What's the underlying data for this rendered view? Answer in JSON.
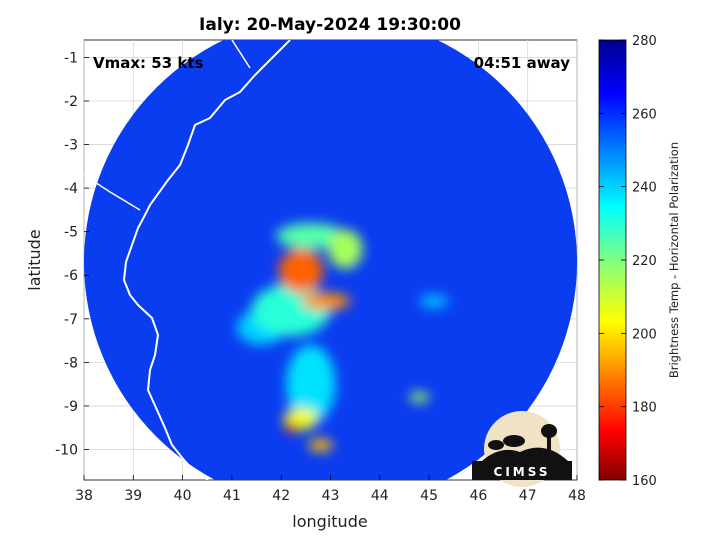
{
  "chart_data": {
    "type": "heatmap",
    "title": "Ialy: 20-May-2024 19:30:00",
    "xlabel": "longitude",
    "ylabel": "latitude",
    "xlim": [
      38,
      48
    ],
    "ylim": [
      -10.7,
      -0.6
    ],
    "xticks": [
      "38",
      "39",
      "40",
      "41",
      "42",
      "43",
      "44",
      "45",
      "46",
      "47",
      "48"
    ],
    "yticks": [
      "-1",
      "-2",
      "-3",
      "-4",
      "-5",
      "-6",
      "-7",
      "-8",
      "-9",
      "-10"
    ],
    "grid": true,
    "colorbar": {
      "label": "Brightness Temp - Horizontal Polarization",
      "range": [
        160,
        280
      ],
      "ticks": [
        "280",
        "260",
        "240",
        "220",
        "200",
        "180",
        "160"
      ]
    },
    "annotations": {
      "vmax": "Vmax: 53 kts",
      "time_away": "04:51 away"
    },
    "logo_text": "CIMSS",
    "swath": {
      "center": [
        43.0,
        -5.7
      ],
      "radius_deg": 5.0
    },
    "features": [
      {
        "lon": 42.4,
        "lat": -5.9,
        "tb": 185,
        "sx": 0.45,
        "sy": 0.5
      },
      {
        "lon": 42.9,
        "lat": -6.6,
        "tb": 190,
        "sx": 0.5,
        "sy": 0.2
      },
      {
        "lon": 43.3,
        "lat": -5.4,
        "tb": 215,
        "sx": 0.35,
        "sy": 0.45
      },
      {
        "lon": 42.6,
        "lat": -5.1,
        "tb": 225,
        "sx": 0.7,
        "sy": 0.3
      },
      {
        "lon": 42.2,
        "lat": -6.8,
        "tb": 230,
        "sx": 0.8,
        "sy": 0.6
      },
      {
        "lon": 42.4,
        "lat": -9.3,
        "tb": 205,
        "sx": 0.35,
        "sy": 0.25
      },
      {
        "lon": 42.2,
        "lat": -9.5,
        "tb": 175,
        "sx": 0.12,
        "sy": 0.12
      },
      {
        "lon": 42.8,
        "lat": -9.9,
        "tb": 195,
        "sx": 0.25,
        "sy": 0.15
      },
      {
        "lon": 42.6,
        "lat": -8.5,
        "tb": 238,
        "sx": 0.5,
        "sy": 0.9
      },
      {
        "lon": 44.8,
        "lat": -8.8,
        "tb": 215,
        "sx": 0.2,
        "sy": 0.12
      },
      {
        "lon": 45.1,
        "lat": -6.6,
        "tb": 242,
        "sx": 0.3,
        "sy": 0.15
      },
      {
        "lon": 41.6,
        "lat": -7.2,
        "tb": 240,
        "sx": 0.5,
        "sy": 0.4
      }
    ]
  }
}
